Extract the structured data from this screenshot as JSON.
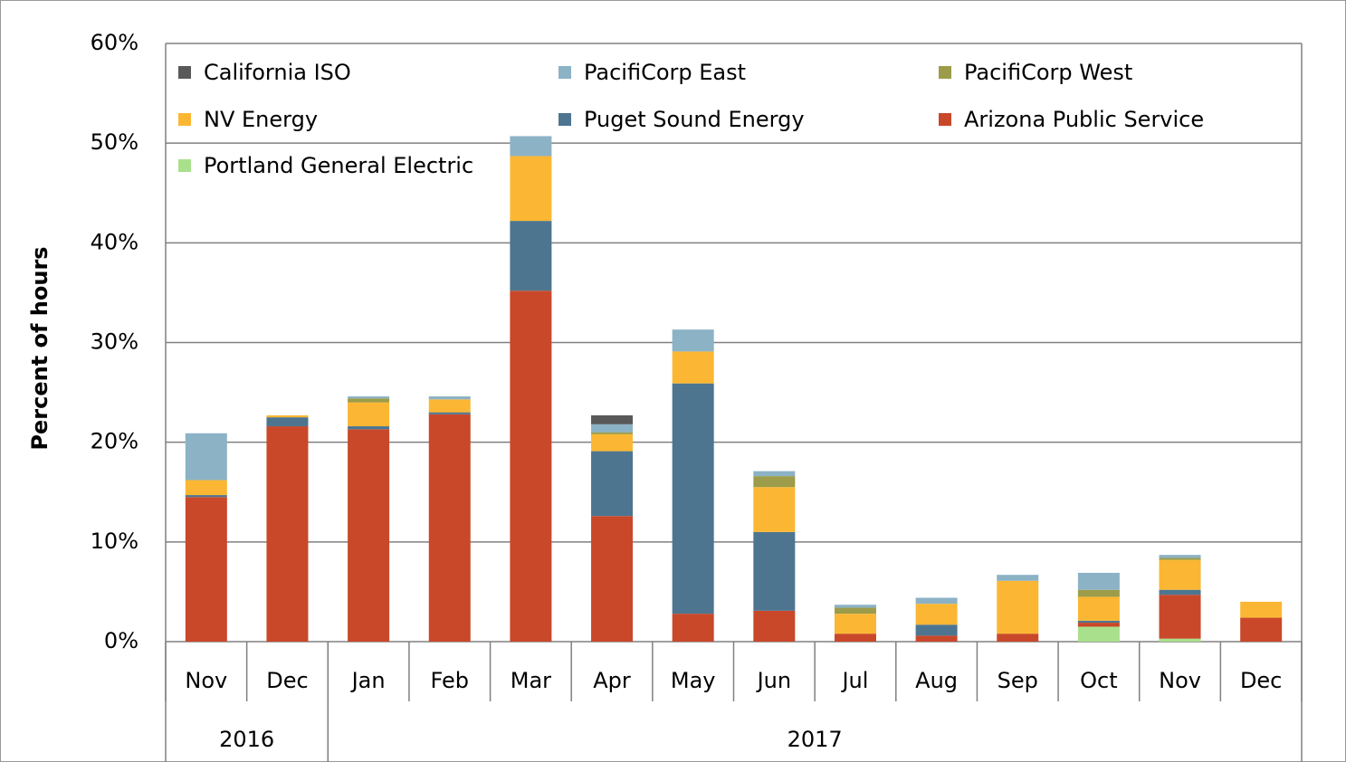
{
  "chart_data": {
    "type": "stacked_bar",
    "y_label": "Percent of hours",
    "categories": [
      "Nov",
      "Dec",
      "Jan",
      "Feb",
      "Mar",
      "Apr",
      "May",
      "Jun",
      "Jul",
      "Aug",
      "Sep",
      "Oct",
      "Nov",
      "Dec"
    ],
    "x_groups": [
      {
        "label": "2016",
        "count": 2
      },
      {
        "label": "2017",
        "count": 12
      }
    ],
    "series": [
      {
        "name": "California ISO",
        "color": "#595959",
        "values": [
          0,
          0,
          0,
          0,
          0,
          0.9,
          0,
          0,
          0,
          0,
          0,
          0,
          0,
          0
        ]
      },
      {
        "name": "PacifiCorp East",
        "color": "#8cb2c6",
        "values": [
          4.7,
          0,
          0.2,
          0.3,
          2.0,
          0.8,
          2.2,
          0.5,
          0.3,
          0.6,
          0.6,
          1.7,
          0.3,
          0
        ]
      },
      {
        "name": "PacifiCorp West",
        "color": "#9c9c4a",
        "values": [
          0,
          0,
          0.4,
          0,
          0,
          0.2,
          0,
          1.1,
          0.6,
          0,
          0,
          0.7,
          0.2,
          0
        ]
      },
      {
        "name": "NV Energy",
        "color": "#fbb733",
        "values": [
          1.5,
          0.2,
          2.4,
          1.3,
          6.5,
          1.7,
          3.2,
          4.5,
          2.0,
          2.1,
          5.3,
          2.4,
          3.0,
          1.6
        ]
      },
      {
        "name": "Puget Sound Energy",
        "color": "#4d7590",
        "values": [
          0.2,
          0.9,
          0.3,
          0.2,
          7.0,
          6.5,
          23.1,
          7.9,
          0,
          1.1,
          0,
          0.2,
          0.5,
          0
        ]
      },
      {
        "name": "Arizona Public Service",
        "color": "#c9482a",
        "values": [
          14.5,
          21.6,
          21.3,
          22.8,
          35.2,
          12.6,
          2.8,
          3.1,
          0.8,
          0.6,
          0.8,
          0.4,
          4.4,
          2.4
        ]
      },
      {
        "name": "Portland General Electric",
        "color": "#a8e08c",
        "values": [
          0,
          0,
          0,
          0,
          0,
          0,
          0,
          0,
          0,
          0,
          0,
          1.5,
          0.3,
          0
        ]
      }
    ],
    "stack": "reverse_legend_order",
    "ylim": [
      0,
      60
    ],
    "yticks": [
      {
        "value": 0,
        "label": "0%"
      },
      {
        "value": 10,
        "label": "10%"
      },
      {
        "value": 20,
        "label": "20%"
      },
      {
        "value": 30,
        "label": "30%"
      },
      {
        "value": 40,
        "label": "40%"
      },
      {
        "value": 50,
        "label": "50%"
      },
      {
        "value": 60,
        "label": "60%"
      }
    ],
    "grid": true,
    "legend": "top"
  }
}
